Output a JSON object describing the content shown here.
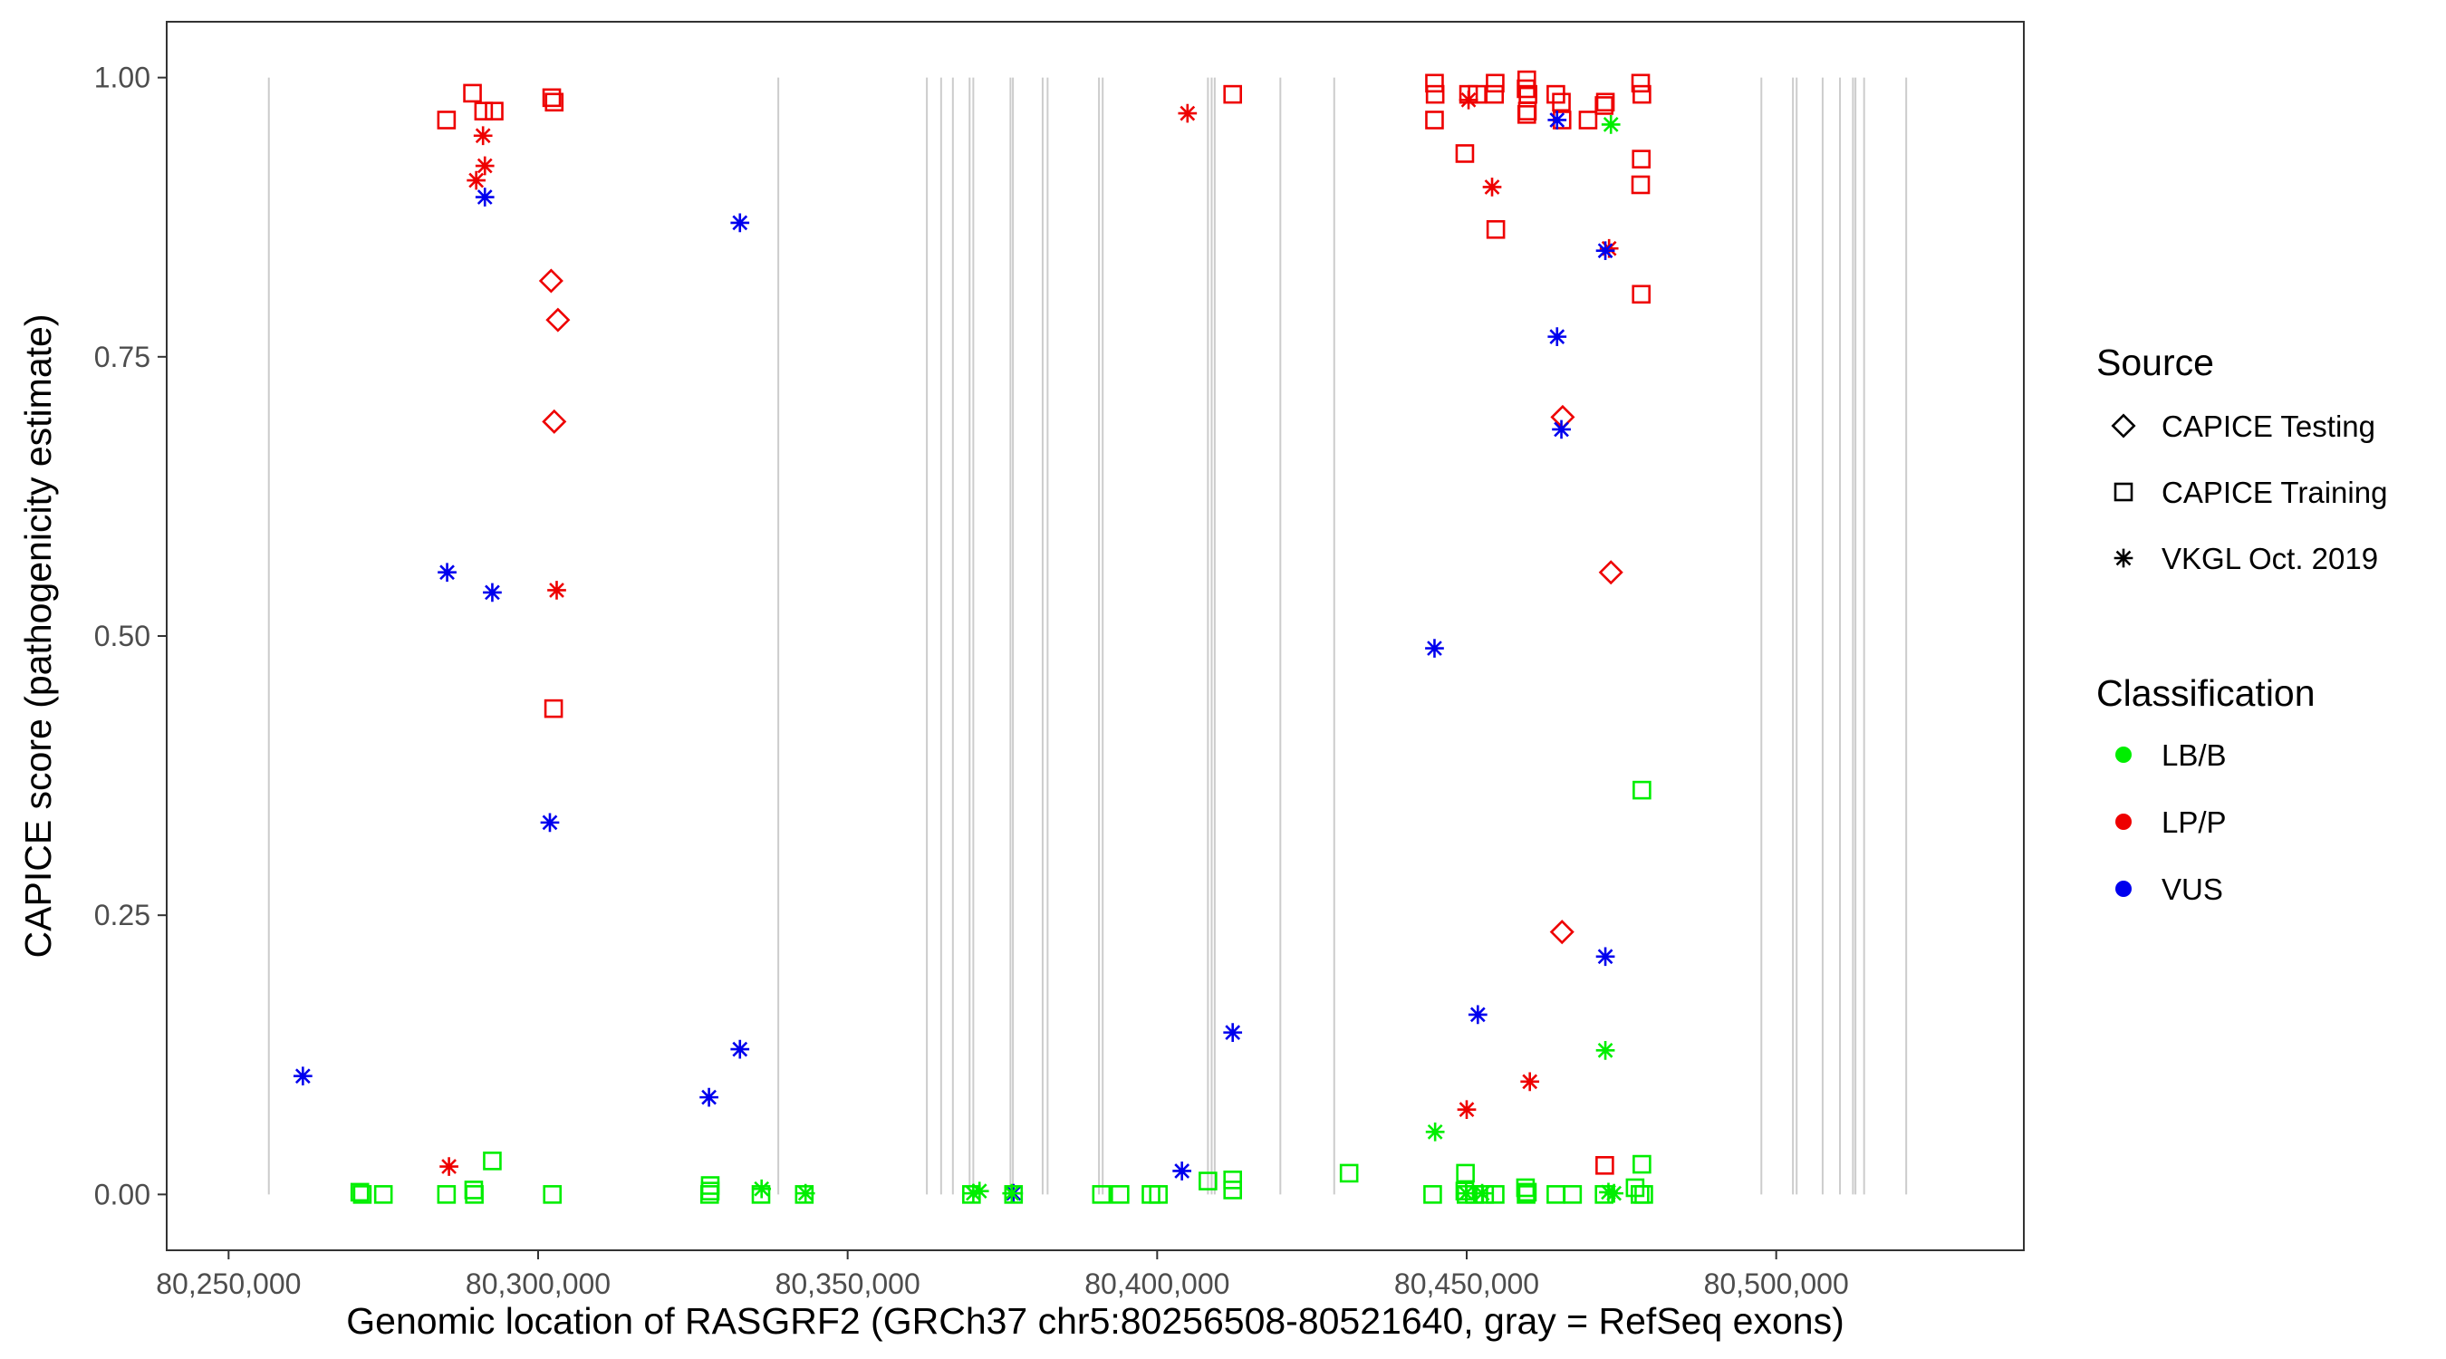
{
  "chart_data": {
    "type": "scatter",
    "xlabel": "Genomic location of RASGRF2 (GRCh37 chr5:80256508-80521640, gray = RefSeq exons)",
    "ylabel": "CAPICE score (pathogenicity estimate)",
    "xlim": [
      80240000,
      80540000
    ],
    "ylim": [
      -0.05,
      1.05
    ],
    "x_ticks": [
      80250000,
      80300000,
      80350000,
      80400000,
      80450000,
      80500000
    ],
    "x_tick_labels": [
      "80,250,000",
      "80,300,000",
      "80,350,000",
      "80,400,000",
      "80,450,000",
      "80,500,000"
    ],
    "y_ticks": [
      0,
      0.25,
      0.5,
      0.75,
      1.0
    ],
    "y_tick_labels": [
      "0.00",
      "0.25",
      "0.50",
      "0.75",
      "1.00"
    ],
    "grid": false,
    "exon_color": "#cccccc",
    "exons": [
      80256500,
      80338800,
      80362800,
      80365100,
      80367000,
      80369700,
      80370300,
      80376300,
      80376700,
      80381500,
      80382300,
      80390600,
      80391200,
      80408200,
      80408800,
      80409300,
      80419900,
      80428600,
      80497600,
      80502700,
      80503300,
      80507500,
      80510300,
      80512400,
      80512800,
      80514200,
      80521000
    ],
    "legend": {
      "source_title": "Source",
      "source_items": [
        {
          "label": "CAPICE Testing",
          "shape": "diamond"
        },
        {
          "label": "CAPICE Training",
          "shape": "square"
        },
        {
          "label": "VKGL Oct. 2019",
          "shape": "asterisk"
        }
      ],
      "class_title": "Classification",
      "class_items": [
        {
          "label": "LB/B",
          "color": "#00ee00"
        },
        {
          "label": "LP/P",
          "color": "#ee0000"
        },
        {
          "label": "VUS",
          "color": "#0000ee"
        }
      ],
      "position": "right"
    },
    "series": [
      {
        "source": "CAPICE Testing",
        "classification": "LP/P",
        "points": [
          [
            80302100,
            0.818
          ],
          [
            80303200,
            0.783
          ],
          [
            80302600,
            0.692
          ],
          [
            80465500,
            0.696
          ],
          [
            80465400,
            0.235
          ],
          [
            80473300,
            0.557
          ]
        ]
      },
      {
        "source": "CAPICE Training",
        "classification": "LP/P",
        "points": [
          [
            80285200,
            0.962
          ],
          [
            80289400,
            0.986
          ],
          [
            80291200,
            0.97
          ],
          [
            80292900,
            0.97
          ],
          [
            80302200,
            0.982
          ],
          [
            80302600,
            0.978
          ],
          [
            80302500,
            0.435
          ],
          [
            80412200,
            0.985
          ],
          [
            80444800,
            0.995
          ],
          [
            80444900,
            0.985
          ],
          [
            80444800,
            0.962
          ],
          [
            80449700,
            0.932
          ],
          [
            80450300,
            0.985
          ],
          [
            80451700,
            0.985
          ],
          [
            80454600,
            0.995
          ],
          [
            80454500,
            0.985
          ],
          [
            80454700,
            0.864
          ],
          [
            80459700,
            0.998
          ],
          [
            80459600,
            0.99
          ],
          [
            80459900,
            0.985
          ],
          [
            80459800,
            0.97
          ],
          [
            80459700,
            0.967
          ],
          [
            80464400,
            0.985
          ],
          [
            80465300,
            0.978
          ],
          [
            80465400,
            0.962
          ],
          [
            80469600,
            0.962
          ],
          [
            80472200,
            0.975
          ],
          [
            80472400,
            0.978
          ],
          [
            80478100,
            0.995
          ],
          [
            80478300,
            0.985
          ],
          [
            80478200,
            0.927
          ],
          [
            80478100,
            0.904
          ],
          [
            80478200,
            0.806
          ],
          [
            80472300,
            0.026
          ]
        ]
      },
      {
        "source": "VKGL Oct. 2019",
        "classification": "LP/P",
        "points": [
          [
            80290000,
            0.908
          ],
          [
            80291100,
            0.948
          ],
          [
            80291400,
            0.921
          ],
          [
            80303000,
            0.541
          ],
          [
            80285600,
            0.025
          ],
          [
            80404900,
            0.968
          ],
          [
            80450300,
            0.98
          ],
          [
            80454100,
            0.902
          ],
          [
            80473000,
            0.847
          ],
          [
            80450000,
            0.076
          ],
          [
            80460200,
            0.101
          ]
        ]
      },
      {
        "source": "VKGL Oct. 2019",
        "classification": "VUS",
        "points": [
          [
            80291400,
            0.893
          ],
          [
            80285300,
            0.557
          ],
          [
            80292600,
            0.539
          ],
          [
            80301900,
            0.333
          ],
          [
            80262000,
            0.106
          ],
          [
            80332600,
            0.87
          ],
          [
            80332600,
            0.13
          ],
          [
            80327600,
            0.087
          ],
          [
            80376800,
            0.001
          ],
          [
            80404000,
            0.021
          ],
          [
            80412200,
            0.145
          ],
          [
            80444800,
            0.489
          ],
          [
            80451800,
            0.161
          ],
          [
            80464600,
            0.962
          ],
          [
            80472400,
            0.845
          ],
          [
            80464600,
            0.768
          ],
          [
            80465300,
            0.685
          ],
          [
            80472400,
            0.213
          ]
        ]
      },
      {
        "source": "VKGL Oct. 2019",
        "classification": "LB/B",
        "points": [
          [
            80473300,
            0.958
          ],
          [
            80472400,
            0.129
          ],
          [
            80444900,
            0.056
          ],
          [
            80336100,
            0.005
          ],
          [
            80343200,
            0.001
          ],
          [
            80370300,
            0.001
          ],
          [
            80371300,
            0.003
          ],
          [
            80376500,
            0.001
          ],
          [
            80449900,
            0.001
          ],
          [
            80452500,
            0.001
          ],
          [
            80472900,
            0.002
          ],
          [
            80473800,
            0.001
          ]
        ]
      },
      {
        "source": "CAPICE Training",
        "classification": "LB/B",
        "points": [
          [
            80271200,
            0.002
          ],
          [
            80271600,
            0.0
          ],
          [
            80275000,
            0.0
          ],
          [
            80285200,
            0.0
          ],
          [
            80289600,
            0.004
          ],
          [
            80289700,
            0.0
          ],
          [
            80292600,
            0.03
          ],
          [
            80302300,
            0.0
          ],
          [
            80327800,
            0.008
          ],
          [
            80327800,
            0.003
          ],
          [
            80327700,
            0.0
          ],
          [
            80336000,
            0.0
          ],
          [
            80343000,
            0.0
          ],
          [
            80370000,
            0.0
          ],
          [
            80376800,
            0.0
          ],
          [
            80391000,
            0.0
          ],
          [
            80394000,
            0.0
          ],
          [
            80399000,
            0.0
          ],
          [
            80400200,
            0.0
          ],
          [
            80408200,
            0.012
          ],
          [
            80412200,
            0.013
          ],
          [
            80412200,
            0.004
          ],
          [
            80431000,
            0.019
          ],
          [
            80444500,
            0.0
          ],
          [
            80449800,
            0.019
          ],
          [
            80449700,
            0.003
          ],
          [
            80449900,
            0.0
          ],
          [
            80451300,
            0.0
          ],
          [
            80452900,
            0.0
          ],
          [
            80454600,
            0.0
          ],
          [
            80459500,
            0.006
          ],
          [
            80459800,
            0.002
          ],
          [
            80459600,
            0.0
          ],
          [
            80464400,
            0.0
          ],
          [
            80467100,
            0.0
          ],
          [
            80472200,
            0.0
          ],
          [
            80477200,
            0.006
          ],
          [
            80478300,
            0.027
          ],
          [
            80478000,
            0.0
          ],
          [
            80478600,
            0.0
          ],
          [
            80478300,
            0.362
          ]
        ]
      }
    ]
  }
}
